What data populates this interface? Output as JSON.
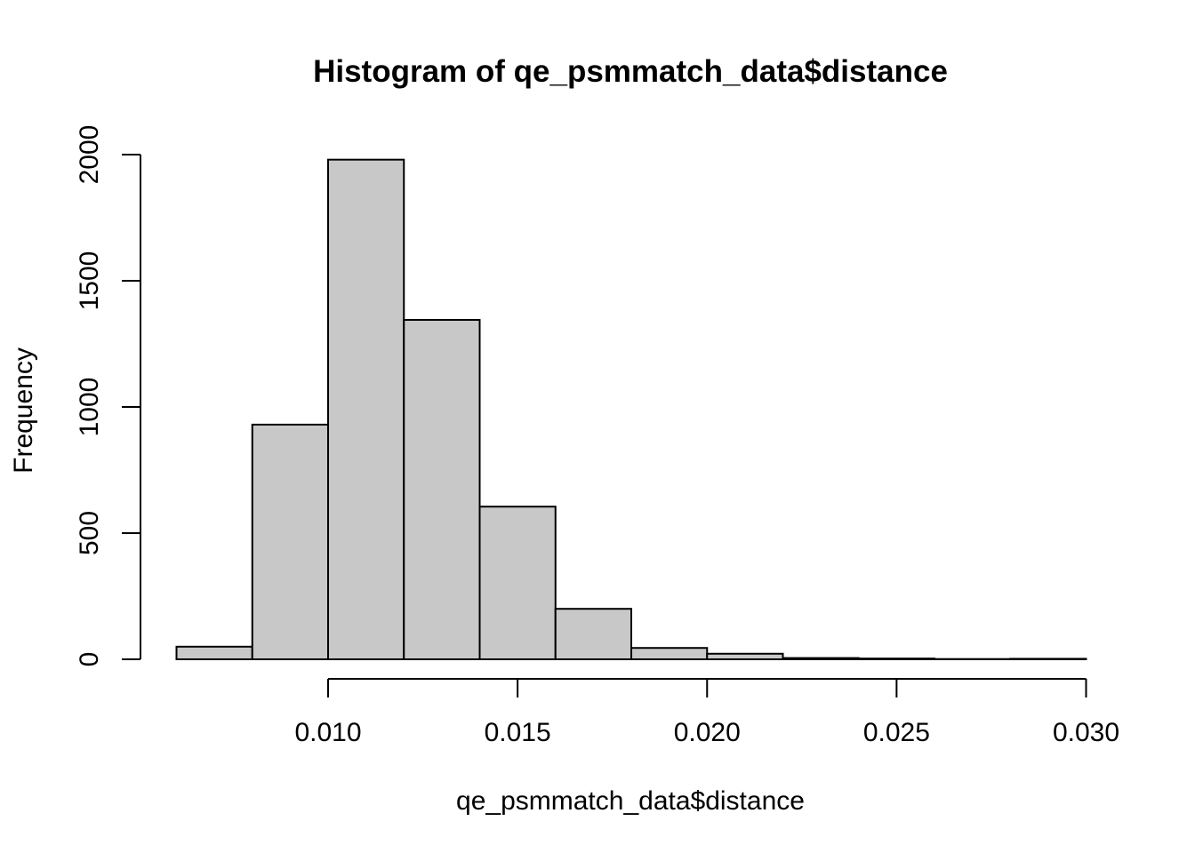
{
  "chart_data": {
    "type": "bar",
    "title": "Histogram of qe_psmmatch_data$distance",
    "xlabel": "qe_psmmatch_data$distance",
    "ylabel": "Frequency",
    "bins": [
      {
        "start": 0.006,
        "end": 0.008,
        "count": 50
      },
      {
        "start": 0.008,
        "end": 0.01,
        "count": 930
      },
      {
        "start": 0.01,
        "end": 0.012,
        "count": 1980
      },
      {
        "start": 0.012,
        "end": 0.014,
        "count": 1345
      },
      {
        "start": 0.014,
        "end": 0.016,
        "count": 605
      },
      {
        "start": 0.016,
        "end": 0.018,
        "count": 200
      },
      {
        "start": 0.018,
        "end": 0.02,
        "count": 45
      },
      {
        "start": 0.02,
        "end": 0.022,
        "count": 22
      },
      {
        "start": 0.022,
        "end": 0.024,
        "count": 5
      },
      {
        "start": 0.024,
        "end": 0.026,
        "count": 3
      },
      {
        "start": 0.026,
        "end": 0.028,
        "count": 1
      },
      {
        "start": 0.028,
        "end": 0.03,
        "count": 2
      }
    ],
    "x_ticks": [
      "0.010",
      "0.015",
      "0.020",
      "0.025",
      "0.030"
    ],
    "y_ticks": [
      "0",
      "500",
      "1000",
      "1500",
      "2000"
    ],
    "xlim": [
      0.006,
      0.03
    ],
    "ylim": [
      0,
      2000
    ],
    "grid": false,
    "bar_color": "#c8c8c8",
    "edge_color": "#000000"
  }
}
